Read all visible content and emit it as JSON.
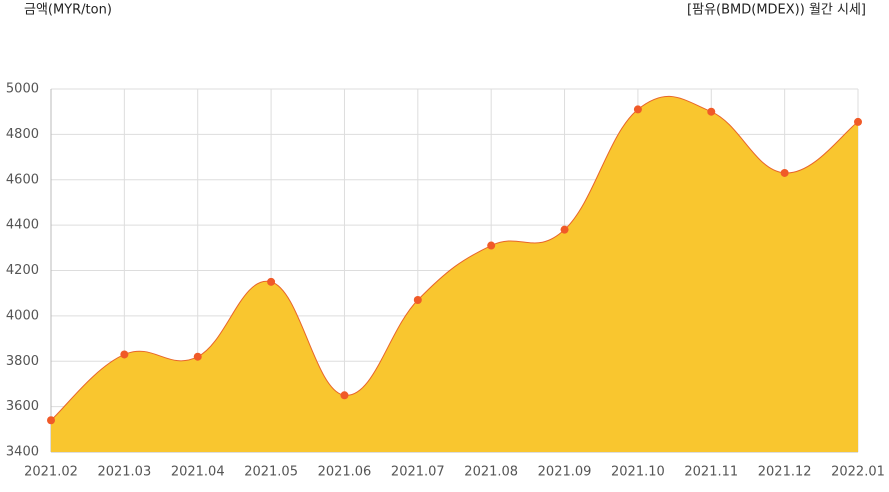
{
  "chart_data": {
    "type": "area",
    "y_label": "금액(MYR/ton)",
    "title": "[팜유(BMD(MDEX)) 월간 시세]",
    "categories": [
      "2021.02",
      "2021.03",
      "2021.04",
      "2021.05",
      "2021.06",
      "2021.07",
      "2021.08",
      "2021.09",
      "2021.10",
      "2021.11",
      "2021.12",
      "2022.01"
    ],
    "values": [
      3540,
      3830,
      3820,
      4150,
      3650,
      4070,
      4310,
      4380,
      4910,
      4900,
      4630,
      4855
    ],
    "color": "#f9c62f",
    "line_color": "#e8652a",
    "point_color": "#f05a28",
    "ylim": [
      3400,
      5000
    ],
    "yticks": [
      3400,
      3600,
      3800,
      4000,
      4200,
      4400,
      4600,
      4800,
      5000
    ],
    "grid": true
  }
}
